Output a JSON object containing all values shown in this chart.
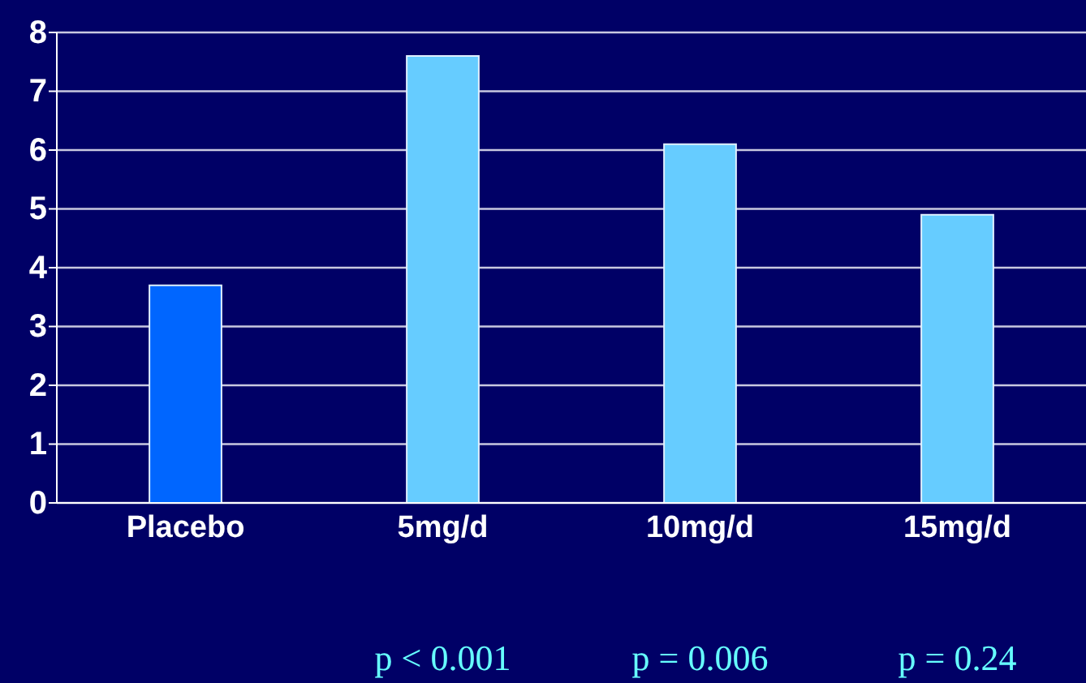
{
  "chart_data": {
    "type": "bar",
    "categories": [
      "Placebo",
      "5mg/d",
      "10mg/d",
      "15mg/d"
    ],
    "values": [
      3.7,
      7.6,
      6.1,
      4.9
    ],
    "colors": [
      "#0066ff",
      "#66ccff",
      "#66ccff",
      "#66ccff"
    ],
    "ylim": [
      0,
      8
    ],
    "yticks": [
      0,
      1,
      2,
      3,
      4,
      5,
      6,
      7,
      8
    ],
    "grid": "y",
    "annotations": [
      "p < 0.001",
      "p = 0.006",
      "p = 0.24"
    ]
  }
}
